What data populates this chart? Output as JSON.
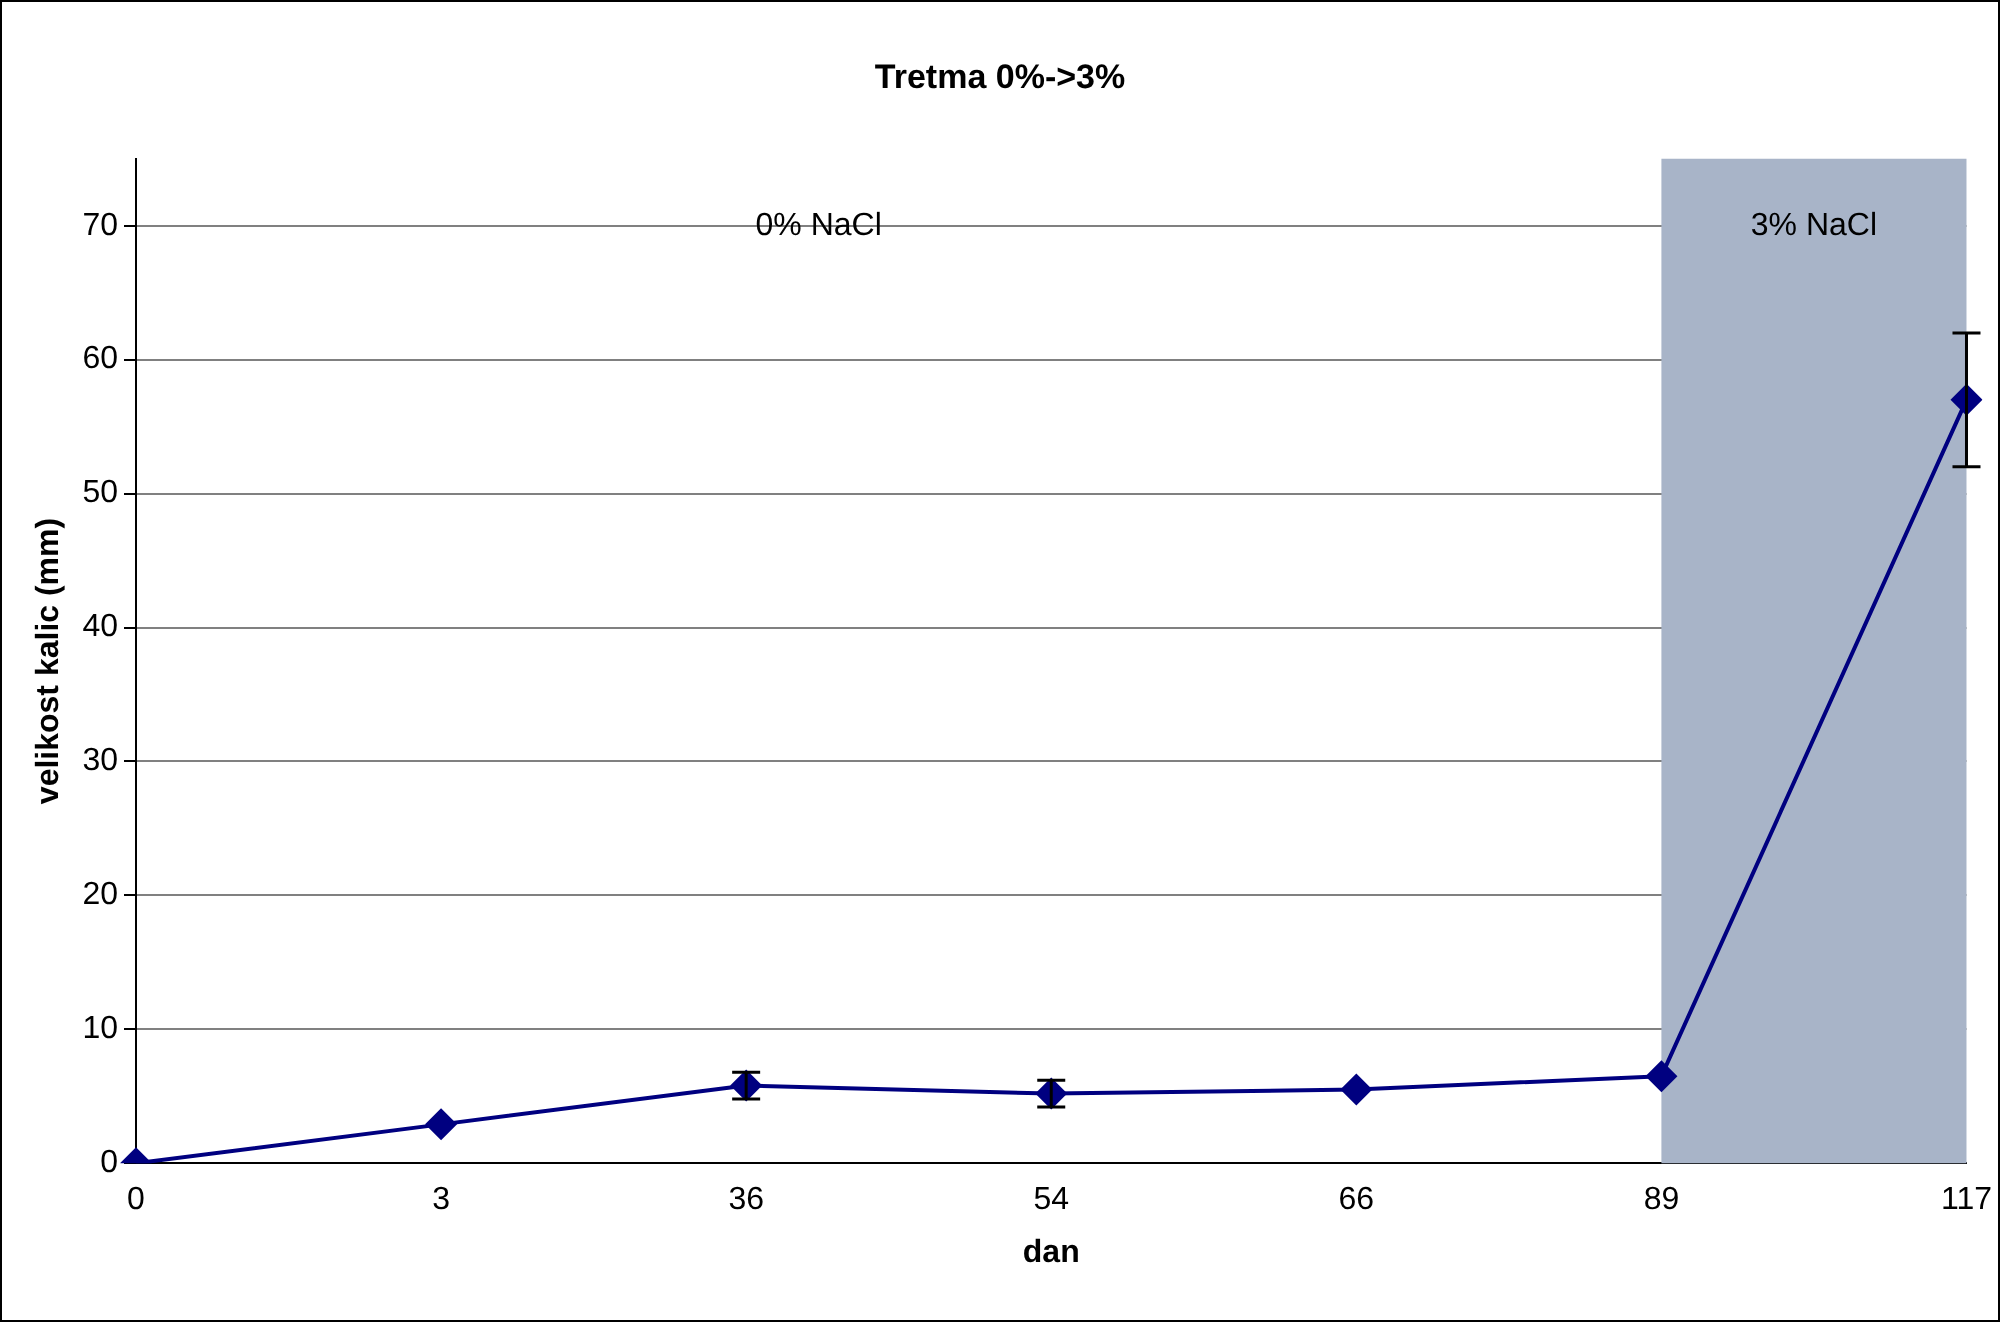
{
  "chart_data": {
    "type": "line",
    "title": "Tretma 0%->3%",
    "xlabel": "dan",
    "ylabel": "velikost kalic (mm)",
    "categories": [
      "0",
      "3",
      "36",
      "54",
      "66",
      "89",
      "117"
    ],
    "series": [
      {
        "color": "#000080",
        "values": [
          0,
          2.9,
          5.8,
          5.2,
          5.5,
          6.5,
          57
        ],
        "errors": [
          null,
          null,
          1,
          1,
          null,
          null,
          5
        ]
      }
    ],
    "ylim": [
      0,
      75
    ],
    "yticks": [
      0,
      10,
      20,
      30,
      40,
      50,
      60,
      70
    ],
    "grid": "y",
    "legend": false,
    "marker": "diamond",
    "line_style": "solid",
    "bands": [
      {
        "axis": "x",
        "from": "89",
        "to": "117",
        "label": "3% NaCl",
        "color": "#a8b4c8"
      }
    ],
    "annotations": [
      "0% NaCl"
    ]
  }
}
